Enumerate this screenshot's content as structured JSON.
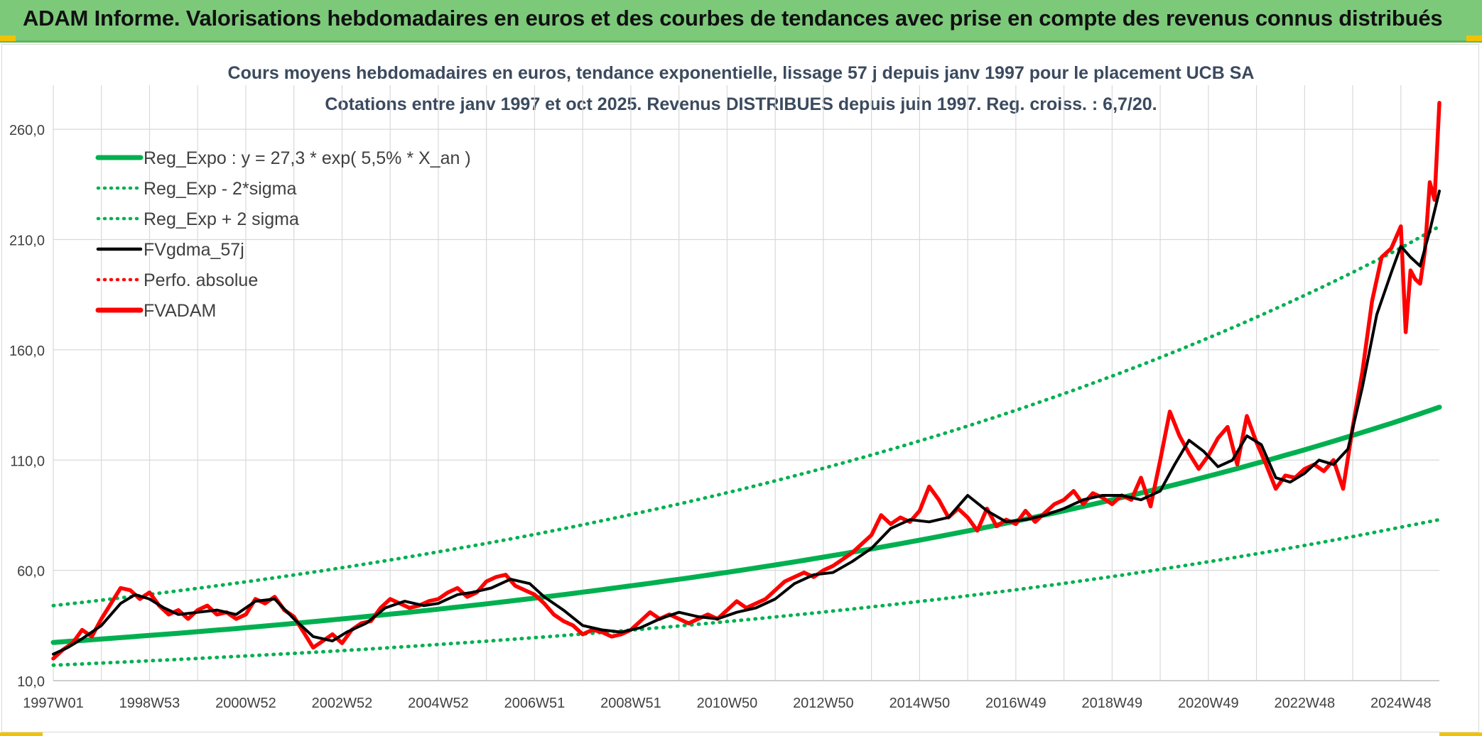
{
  "header": {
    "title": "ADAM Informe. Valorisations hebdomadaires en euros et des courbes de tendances avec prise en compte des revenus connus distribués"
  },
  "colors": {
    "banner": "#7cc97a",
    "trend": "#00b050",
    "gdma": "#000000",
    "fvadam": "#ff0000",
    "perfo": "#ff0000",
    "grid": "#d9d9d9"
  },
  "chart_data": {
    "type": "line",
    "title": "Cours moyens hebdomadaires en euros, tendance exponentielle, lissage 57 j depuis janv 1997 pour le placement UCB SA",
    "subtitle": "Cotations entre janv 1997 et oct 2025. Revenus DISTRIBUES depuis juin 1997. Reg. croiss. : 6,7/20.",
    "xlabel": "",
    "ylabel": "",
    "ylim": [
      10,
      280
    ],
    "xlim": [
      1997.0,
      2025.8
    ],
    "y_ticks": [
      "10,0",
      "60,0",
      "110,0",
      "160,0",
      "210,0",
      "260,0"
    ],
    "y_tick_values": [
      10,
      60,
      110,
      160,
      210,
      260
    ],
    "x_ticks": [
      "1997W01",
      "1998W53",
      "2000W52",
      "2002W52",
      "2004W52",
      "2006W51",
      "2008W51",
      "2010W50",
      "2012W50",
      "2014W50",
      "2016W49",
      "2018W49",
      "2020W49",
      "2022W48",
      "2024W48"
    ],
    "x_tick_values": [
      1997.0,
      1999.0,
      2001.0,
      2003.0,
      2005.0,
      2007.0,
      2009.0,
      2011.0,
      2013.0,
      2015.0,
      2017.0,
      2019.0,
      2021.0,
      2023.0,
      2025.0
    ],
    "grid": true,
    "legend_position": "top-left",
    "legend": [
      {
        "label": "Reg_Expo : y = 27,3 * exp( 5,5% *  X_an )",
        "style": "solid-thick",
        "color": "#00b050"
      },
      {
        "label": "Reg_Exp - 2*sigma",
        "style": "dotted",
        "color": "#00b050"
      },
      {
        "label": "Reg_Exp + 2 sigma",
        "style": "dotted",
        "color": "#00b050"
      },
      {
        "label": "FVgdma_57j",
        "style": "solid",
        "color": "#000000"
      },
      {
        "label": "Perfo. absolue",
        "style": "dotted",
        "color": "#ff0000"
      },
      {
        "label": "FVADAM",
        "style": "solid-thick",
        "color": "#ff0000"
      }
    ],
    "series": [
      {
        "name": "Reg_Expo : y = 27,3 * exp( 5,5% *  X_an )",
        "x": [
          1997.0,
          1999.0,
          2001.0,
          2003.0,
          2005.0,
          2007.0,
          2009.0,
          2011.0,
          2013.0,
          2015.0,
          2017.0,
          2019.0,
          2021.0,
          2023.0,
          2025.0,
          2025.8
        ],
        "values": [
          27.3,
          30.5,
          34.0,
          38.0,
          42.4,
          47.4,
          53.0,
          59.1,
          66.0,
          73.7,
          82.3,
          92.0,
          102.7,
          114.7,
          128.1,
          134.0
        ]
      },
      {
        "name": "Reg_Exp - 2*sigma",
        "x": [
          1997.0,
          1999.0,
          2001.0,
          2003.0,
          2005.0,
          2007.0,
          2009.0,
          2011.0,
          2013.0,
          2015.0,
          2017.0,
          2019.0,
          2021.0,
          2023.0,
          2025.0,
          2025.8
        ],
        "values": [
          17.0,
          19.0,
          21.2,
          23.6,
          26.4,
          29.5,
          32.9,
          36.8,
          41.1,
          45.9,
          51.2,
          57.2,
          63.9,
          71.3,
          79.6,
          83.0
        ]
      },
      {
        "name": "Reg_Exp + 2 sigma",
        "x": [
          1997.0,
          1999.0,
          2001.0,
          2003.0,
          2005.0,
          2007.0,
          2009.0,
          2011.0,
          2013.0,
          2015.0,
          2017.0,
          2019.0,
          2021.0,
          2023.0,
          2025.0,
          2025.8
        ],
        "values": [
          44.0,
          49.1,
          54.8,
          61.2,
          68.4,
          76.3,
          85.3,
          95.2,
          106.3,
          118.7,
          132.6,
          148.1,
          165.4,
          184.7,
          206.2,
          216.0
        ]
      },
      {
        "name": "FVgdma_57j",
        "x": [
          1997.0,
          1997.3,
          1997.6,
          1998.0,
          1998.4,
          1998.7,
          1999.0,
          1999.3,
          1999.6,
          2000.0,
          2000.4,
          2000.8,
          2001.2,
          2001.6,
          2002.0,
          2002.4,
          2002.8,
          2003.1,
          2003.5,
          2003.9,
          2004.3,
          2004.7,
          2005.0,
          2005.4,
          2005.7,
          2006.1,
          2006.5,
          2006.9,
          2007.2,
          2007.6,
          2008.0,
          2008.4,
          2008.8,
          2009.2,
          2009.6,
          2010.0,
          2010.4,
          2010.8,
          2011.2,
          2011.6,
          2012.0,
          2012.4,
          2012.8,
          2013.2,
          2013.6,
          2014.0,
          2014.4,
          2014.8,
          2015.2,
          2015.6,
          2016.0,
          2016.4,
          2016.8,
          2017.2,
          2017.6,
          2018.0,
          2018.4,
          2018.8,
          2019.2,
          2019.6,
          2020.0,
          2020.3,
          2020.6,
          2020.9,
          2021.2,
          2021.5,
          2021.8,
          2022.1,
          2022.4,
          2022.7,
          2023.0,
          2023.3,
          2023.6,
          2023.9,
          2024.2,
          2024.5,
          2024.8,
          2025.0,
          2025.2,
          2025.4,
          2025.6,
          2025.8
        ],
        "values": [
          22,
          25,
          29,
          35,
          45,
          49,
          47,
          43,
          40,
          41,
          42,
          40,
          46,
          47,
          38,
          30,
          28,
          32,
          36,
          43,
          46,
          44,
          45,
          49,
          50,
          52,
          56,
          54,
          48,
          42,
          35,
          33,
          32,
          34,
          38,
          41,
          39,
          38,
          41,
          43,
          47,
          54,
          58,
          59,
          64,
          70,
          79,
          83,
          82,
          84,
          94,
          87,
          82,
          83,
          85,
          88,
          92,
          94,
          94,
          92,
          96,
          108,
          119,
          114,
          107,
          110,
          121,
          117,
          102,
          100,
          104,
          110,
          108,
          115,
          143,
          176,
          195,
          207,
          202,
          198,
          214,
          232
        ]
      },
      {
        "name": "FVADAM",
        "x": [
          1997.0,
          1997.2,
          1997.4,
          1997.6,
          1997.8,
          1998.0,
          1998.2,
          1998.4,
          1998.6,
          1998.8,
          1999.0,
          1999.2,
          1999.4,
          1999.6,
          1999.8,
          2000.0,
          2000.2,
          2000.4,
          2000.6,
          2000.8,
          2001.0,
          2001.2,
          2001.4,
          2001.6,
          2001.8,
          2002.0,
          2002.2,
          2002.4,
          2002.6,
          2002.8,
          2003.0,
          2003.2,
          2003.4,
          2003.6,
          2003.8,
          2004.0,
          2004.2,
          2004.4,
          2004.6,
          2004.8,
          2005.0,
          2005.2,
          2005.4,
          2005.6,
          2005.8,
          2006.0,
          2006.2,
          2006.4,
          2006.6,
          2006.8,
          2007.0,
          2007.2,
          2007.4,
          2007.6,
          2007.8,
          2008.0,
          2008.2,
          2008.4,
          2008.6,
          2008.8,
          2009.0,
          2009.2,
          2009.4,
          2009.6,
          2009.8,
          2010.0,
          2010.2,
          2010.4,
          2010.6,
          2010.8,
          2011.0,
          2011.2,
          2011.4,
          2011.6,
          2011.8,
          2012.0,
          2012.2,
          2012.4,
          2012.6,
          2012.8,
          2013.0,
          2013.2,
          2013.4,
          2013.6,
          2013.8,
          2014.0,
          2014.2,
          2014.4,
          2014.6,
          2014.8,
          2015.0,
          2015.2,
          2015.4,
          2015.6,
          2015.8,
          2016.0,
          2016.2,
          2016.4,
          2016.6,
          2016.8,
          2017.0,
          2017.2,
          2017.4,
          2017.6,
          2017.8,
          2018.0,
          2018.2,
          2018.4,
          2018.6,
          2018.8,
          2019.0,
          2019.2,
          2019.4,
          2019.6,
          2019.8,
          2020.0,
          2020.2,
          2020.4,
          2020.6,
          2020.8,
          2021.0,
          2021.2,
          2021.4,
          2021.6,
          2021.8,
          2022.0,
          2022.2,
          2022.4,
          2022.6,
          2022.8,
          2023.0,
          2023.2,
          2023.4,
          2023.6,
          2023.8,
          2024.0,
          2024.2,
          2024.4,
          2024.6,
          2024.8,
          2025.0,
          2025.1,
          2025.2,
          2025.3,
          2025.4,
          2025.5,
          2025.6,
          2025.7,
          2025.8
        ],
        "values": [
          20,
          24,
          27,
          33,
          30,
          38,
          45,
          52,
          51,
          47,
          50,
          44,
          40,
          42,
          38,
          42,
          44,
          40,
          41,
          38,
          40,
          47,
          45,
          48,
          42,
          39,
          32,
          25,
          28,
          31,
          27,
          33,
          36,
          37,
          43,
          47,
          45,
          43,
          44,
          46,
          47,
          50,
          52,
          48,
          50,
          55,
          57,
          58,
          53,
          51,
          49,
          45,
          40,
          37,
          35,
          31,
          33,
          32,
          30,
          31,
          33,
          37,
          41,
          38,
          40,
          38,
          36,
          38,
          40,
          38,
          42,
          46,
          43,
          45,
          47,
          51,
          55,
          57,
          59,
          57,
          60,
          62,
          65,
          68,
          72,
          76,
          85,
          81,
          84,
          82,
          87,
          98,
          92,
          84,
          88,
          84,
          78,
          88,
          80,
          83,
          81,
          87,
          82,
          86,
          90,
          92,
          96,
          90,
          95,
          93,
          90,
          94,
          92,
          102,
          89,
          110,
          132,
          121,
          113,
          106,
          112,
          120,
          125,
          108,
          130,
          118,
          108,
          97,
          103,
          102,
          106,
          108,
          105,
          110,
          97,
          125,
          150,
          182,
          202,
          206,
          216,
          168,
          196,
          192,
          190,
          205,
          236,
          228,
          272
        ]
      }
    ]
  }
}
